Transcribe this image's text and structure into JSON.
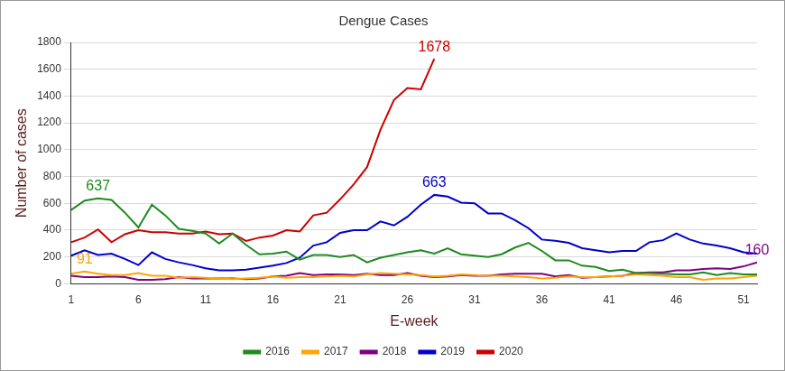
{
  "chart_data": {
    "type": "line",
    "title": "Dengue Cases",
    "x_label": "E-week",
    "y_label": "Number of cases",
    "x": [
      1,
      2,
      3,
      4,
      5,
      6,
      7,
      8,
      9,
      10,
      11,
      12,
      13,
      14,
      15,
      16,
      17,
      18,
      19,
      20,
      21,
      22,
      23,
      24,
      25,
      26,
      27,
      28,
      29,
      30,
      31,
      32,
      33,
      34,
      35,
      36,
      37,
      38,
      39,
      40,
      41,
      42,
      43,
      44,
      45,
      46,
      47,
      48,
      49,
      50,
      51,
      52
    ],
    "xlim": [
      1,
      52
    ],
    "xticks": [
      1,
      6,
      11,
      16,
      21,
      26,
      31,
      36,
      41,
      46,
      51
    ],
    "ylim": [
      0,
      1800
    ],
    "yticks": [
      0,
      200,
      400,
      600,
      800,
      1000,
      1200,
      1400,
      1600,
      1800
    ],
    "grid": "y",
    "legend": "bottom",
    "marker": "none",
    "series": [
      {
        "name": "2016",
        "color": "#1e8a1e",
        "values": [
          550,
          620,
          637,
          625,
          530,
          420,
          590,
          510,
          410,
          395,
          375,
          300,
          375,
          290,
          220,
          225,
          240,
          180,
          215,
          215,
          200,
          215,
          160,
          195,
          215,
          235,
          250,
          225,
          265,
          220,
          210,
          200,
          220,
          270,
          305,
          245,
          175,
          175,
          135,
          125,
          95,
          105,
          80,
          80,
          75,
          70,
          70,
          85,
          65,
          80,
          70,
          70
        ]
      },
      {
        "name": "2017",
        "color": "#ffa500",
        "values": [
          75,
          91,
          75,
          65,
          65,
          80,
          60,
          60,
          45,
          50,
          45,
          40,
          35,
          40,
          45,
          55,
          45,
          50,
          50,
          55,
          60,
          55,
          70,
          80,
          75,
          70,
          65,
          55,
          60,
          70,
          65,
          60,
          60,
          55,
          50,
          40,
          45,
          55,
          50,
          50,
          55,
          60,
          70,
          65,
          60,
          50,
          50,
          30,
          40,
          40,
          50,
          60
        ]
      },
      {
        "name": "2018",
        "color": "#800080",
        "values": [
          60,
          50,
          50,
          55,
          50,
          30,
          30,
          35,
          50,
          40,
          40,
          40,
          40,
          35,
          40,
          55,
          60,
          80,
          65,
          70,
          70,
          65,
          75,
          65,
          65,
          80,
          60,
          50,
          55,
          65,
          60,
          60,
          70,
          75,
          75,
          75,
          55,
          65,
          45,
          50,
          55,
          60,
          80,
          85,
          85,
          100,
          100,
          110,
          115,
          110,
          130,
          160
        ]
      },
      {
        "name": "2019",
        "color": "#0000cc",
        "values": [
          210,
          250,
          215,
          225,
          185,
          140,
          235,
          185,
          160,
          140,
          115,
          100,
          100,
          105,
          120,
          135,
          155,
          195,
          285,
          310,
          380,
          400,
          400,
          465,
          435,
          500,
          590,
          663,
          650,
          605,
          600,
          525,
          525,
          475,
          415,
          330,
          320,
          305,
          265,
          250,
          235,
          245,
          245,
          310,
          325,
          375,
          330,
          300,
          285,
          265,
          235,
          225
        ]
      },
      {
        "name": "2020",
        "color": "#cc0000",
        "values": [
          310,
          345,
          405,
          310,
          370,
          400,
          385,
          385,
          375,
          375,
          390,
          370,
          375,
          320,
          345,
          360,
          400,
          390,
          510,
          530,
          630,
          740,
          870,
          1150,
          1370,
          1460,
          1450,
          1678,
          null,
          null,
          null,
          null,
          null,
          null,
          null,
          null,
          null,
          null,
          null,
          null,
          null,
          null,
          null,
          null,
          null,
          null,
          null,
          null,
          null,
          null,
          null,
          null
        ]
      }
    ],
    "annotations": [
      {
        "series": "2016",
        "x": 3,
        "label": "637"
      },
      {
        "series": "2017",
        "x": 2,
        "label": "91"
      },
      {
        "series": "2018",
        "x": 52,
        "label": "160"
      },
      {
        "series": "2019",
        "x": 28,
        "label": "663"
      },
      {
        "series": "2020",
        "x": 28,
        "label": "1678"
      }
    ]
  }
}
